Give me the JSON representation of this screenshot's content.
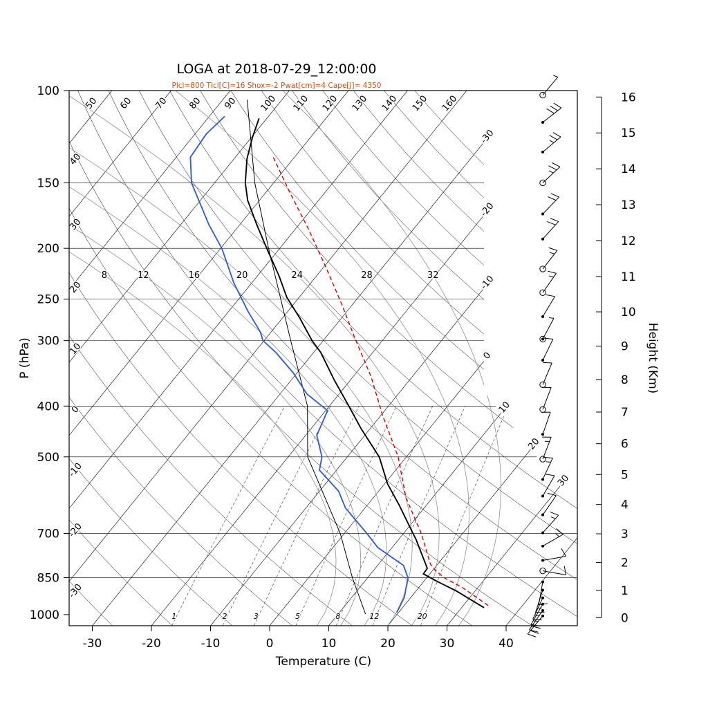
{
  "title": "LOGA at 2018-07-29_12:00:00",
  "subtitle": "Plcl=800 Tlcl[C]=16 Shox=-2 Pwat[cm]=4 Cape[J]= 4350",
  "axes": {
    "x_label": "Temperature (C)",
    "y_label": "P (hPa)",
    "height_label": "Height (Km)",
    "x_ticks": [
      -30,
      -20,
      -10,
      0,
      10,
      20,
      30,
      40
    ],
    "pressure_ticks": [
      100,
      150,
      200,
      250,
      300,
      400,
      500,
      700,
      850,
      1000
    ],
    "pressure_grid": [
      150,
      200,
      250,
      300,
      400,
      500,
      700,
      850
    ],
    "height_ticks_km": [
      0,
      1,
      2,
      3,
      4,
      5,
      6,
      7,
      8,
      9,
      10,
      11,
      12,
      13,
      14,
      15,
      16
    ]
  },
  "chart_data": {
    "type": "skewt_log_p",
    "pressure_range_hpa": [
      100,
      1050
    ],
    "surface_temp_axis_range_c": [
      -34,
      52
    ],
    "isotherms_c": {
      "min": -100,
      "max": 40,
      "step": 10
    },
    "isotherm_labels_c": [
      -30,
      -20,
      -10,
      0,
      10,
      20,
      30
    ],
    "dry_adiabats_theta_c": {
      "min": -30,
      "max": 160,
      "step": 10
    },
    "moist_adiabats": {
      "values_c": [
        8,
        12,
        16,
        20,
        24,
        28,
        32
      ],
      "label_pressure_hpa": 225,
      "label_temp_c": [
        -76,
        -69.4,
        -60.8,
        -52.7,
        -43.4,
        -31.6,
        -20.4
      ]
    },
    "mixing_ratio_g_kg": [
      1,
      2,
      3,
      5,
      8,
      12,
      20
    ],
    "indices": {
      "Plcl": 800,
      "Tlcl_C": 16,
      "Shox": -2,
      "Pwat_cm": 4,
      "Cape_J": 4350
    },
    "sounding": {
      "temperature_p_t": [
        [
          970,
          33.8
        ],
        [
          902,
          26.9
        ],
        [
          862,
          22.0
        ],
        [
          836,
          18.9
        ],
        [
          816,
          18.8
        ],
        [
          718,
          12.9
        ],
        [
          700,
          11.6
        ],
        [
          617,
          5.3
        ],
        [
          563,
          0.5
        ],
        [
          500,
          -4.6
        ],
        [
          442,
          -11.5
        ],
        [
          400,
          -16.7
        ],
        [
          357,
          -22.7
        ],
        [
          316,
          -28.8
        ],
        [
          300,
          -31.9
        ],
        [
          272,
          -37.0
        ],
        [
          248,
          -42.1
        ],
        [
          226,
          -46.3
        ],
        [
          200,
          -52.2
        ],
        [
          180,
          -57.2
        ],
        [
          162,
          -62.0
        ],
        [
          150,
          -64.8
        ],
        [
          135,
          -67.8
        ],
        [
          123,
          -69.8
        ],
        [
          113,
          -71.3
        ]
      ],
      "dewpoint_p_t": [
        [
          991,
          19.7
        ],
        [
          927,
          18.9
        ],
        [
          850,
          16.8
        ],
        [
          806,
          14.4
        ],
        [
          745,
          7.6
        ],
        [
          700,
          3.8
        ],
        [
          626,
          -3.3
        ],
        [
          581,
          -6.8
        ],
        [
          530,
          -12.9
        ],
        [
          500,
          -14.3
        ],
        [
          455,
          -18.1
        ],
        [
          416,
          -19.4
        ],
        [
          408,
          -19.7
        ],
        [
          379,
          -25.5
        ],
        [
          346,
          -30.6
        ],
        [
          316,
          -36.4
        ],
        [
          300,
          -40.2
        ],
        [
          289,
          -41.8
        ],
        [
          264,
          -46.7
        ],
        [
          233,
          -53.0
        ],
        [
          200,
          -59.8
        ],
        [
          180,
          -65.3
        ],
        [
          150,
          -73.9
        ],
        [
          134,
          -77.6
        ],
        [
          121,
          -78.1
        ],
        [
          112,
          -77.4
        ]
      ],
      "parcel_p_t": [
        [
          961,
          34.2
        ],
        [
          888,
          27.4
        ],
        [
          851,
          23.0
        ],
        [
          823,
          20.4
        ],
        [
          800,
          18.7
        ],
        [
          700,
          13.0
        ],
        [
          598,
          5.5
        ],
        [
          500,
          -1.4
        ],
        [
          416,
          -9.8
        ],
        [
          352,
          -16.9
        ],
        [
          298,
          -24.8
        ],
        [
          256,
          -31.8
        ],
        [
          216,
          -39.9
        ],
        [
          183,
          -48.0
        ],
        [
          156,
          -56.1
        ],
        [
          134,
          -63.6
        ]
      ],
      "wet_bulb_p_t": [
        [
          997,
          14.6
        ],
        [
          850,
          7.4
        ],
        [
          700,
          -0.7
        ],
        [
          500,
          -16.7
        ],
        [
          400,
          -23.7
        ],
        [
          300,
          -35.5
        ],
        [
          200,
          -51.9
        ],
        [
          150,
          -63.2
        ],
        [
          104,
          -75.9
        ]
      ]
    },
    "winds": [
      {
        "p": 102,
        "sym": "circle",
        "spd": 5,
        "ang": 40
      },
      {
        "p": 115,
        "sym": "dot",
        "spd": 30,
        "ang": 52
      },
      {
        "p": 131,
        "sym": "dot",
        "spd": 25,
        "ang": 50
      },
      {
        "p": 150,
        "sym": "circle",
        "spd": 25,
        "ang": 47
      },
      {
        "p": 172,
        "sym": "dot",
        "spd": 20,
        "ang": 44
      },
      {
        "p": 192,
        "sym": "dot",
        "spd": 20,
        "ang": 42
      },
      {
        "p": 219,
        "sym": "circle",
        "spd": 15,
        "ang": 38
      },
      {
        "p": 243,
        "sym": "circle",
        "spd": 15,
        "ang": 35
      },
      {
        "p": 270,
        "sym": "dot",
        "spd": 10,
        "ang": 31
      },
      {
        "p": 298,
        "sym": "circle-dot",
        "spd": 5,
        "ang": 28
      },
      {
        "p": 327,
        "sym": "dot",
        "spd": 10,
        "ang": 26
      },
      {
        "p": 364,
        "sym": "circle",
        "spd": 10,
        "ang": 23
      },
      {
        "p": 406,
        "sym": "circle",
        "spd": 10,
        "ang": 21
      },
      {
        "p": 453,
        "sym": "dot",
        "spd": 10,
        "ang": 19
      },
      {
        "p": 505,
        "sym": "circle",
        "spd": 15,
        "ang": 21
      },
      {
        "p": 552,
        "sym": "dot",
        "spd": 15,
        "ang": 25
      },
      {
        "p": 594,
        "sym": "dot",
        "spd": 10,
        "ang": 30
      },
      {
        "p": 645,
        "sym": "dot",
        "spd": 10,
        "ang": 35
      },
      {
        "p": 698,
        "sym": "dot",
        "spd": 15,
        "ang": 42
      },
      {
        "p": 740,
        "sym": "dot",
        "spd": 15,
        "ang": 60
      },
      {
        "p": 788,
        "sym": "dot",
        "spd": 10,
        "ang": 80
      },
      {
        "p": 825,
        "sym": "circle",
        "spd": 10,
        "ang": 100
      },
      {
        "p": 866,
        "sym": "dot",
        "spd": 10,
        "ang": 190
      },
      {
        "p": 898,
        "sym": "dot",
        "spd": 15,
        "ang": 198
      },
      {
        "p": 929,
        "sym": "dot",
        "spd": 15,
        "ang": 205
      },
      {
        "p": 955,
        "sym": "dot",
        "spd": 15,
        "ang": 210
      },
      {
        "p": 982,
        "sym": "dot",
        "spd": 20,
        "ang": 215
      },
      {
        "p": 1006,
        "sym": "dot",
        "spd": 20,
        "ang": 220
      }
    ]
  },
  "colors": {
    "temperature": "#000000",
    "dewpoint": "#3a5fc8",
    "parcel": "#cc0000",
    "wet_bulb": "#000000",
    "moist_adiabat": "#8f8f8f",
    "mixing": "#333333",
    "subtitle": "#c05020"
  }
}
